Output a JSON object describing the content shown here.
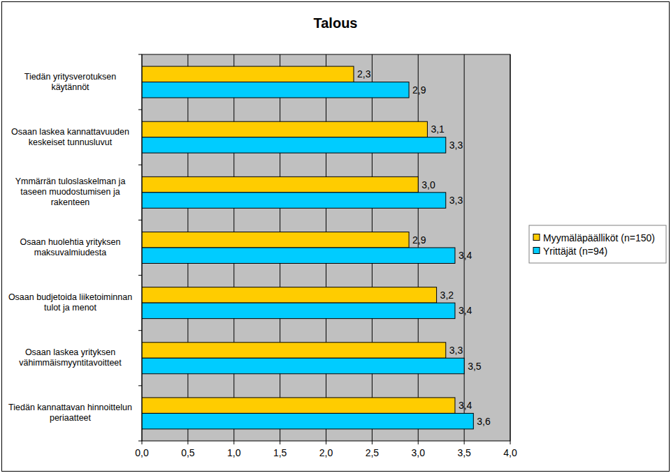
{
  "chart_data": {
    "type": "bar",
    "title": "Talous",
    "orientation": "horizontal",
    "categories": [
      "Tiedän yritysverotuksen käytännöt",
      "Osaan laskea kannattavuuden keskeiset tunnusluvut",
      "Ymmärrän tuloslaskelman ja taseen muodostumisen ja rakenteen",
      "Osaan huolehtia yrityksen maksuvalmiudesta",
      "Osaan budjetoida liiketoiminnan tulot ja menot",
      "Osaan laskea yrityksen vähimmäismyyntitavoitteet",
      "Tiedän kannattavan hinnoittelun periaatteet"
    ],
    "series": [
      {
        "name": "Myymäläpäälliköt (n=150)",
        "color": "#ffcc00",
        "values": [
          2.3,
          3.1,
          3.0,
          2.9,
          3.2,
          3.3,
          3.4
        ],
        "value_labels": [
          "2,3",
          "3,1",
          "3,0",
          "2,9",
          "3,2",
          "3,3",
          "3,4"
        ]
      },
      {
        "name": "Yrittäjät (n=94)",
        "color": "#00ccff",
        "values": [
          2.9,
          3.3,
          3.3,
          3.4,
          3.4,
          3.5,
          3.6
        ],
        "value_labels": [
          "2,9",
          "3,3",
          "3,3",
          "3,4",
          "3,4",
          "3,5",
          "3,6"
        ]
      }
    ],
    "xlim": [
      0,
      4
    ],
    "xticks": [
      {
        "value": 0,
        "label": "0,0"
      },
      {
        "value": 0.5,
        "label": "0,5"
      },
      {
        "value": 1,
        "label": "1,0"
      },
      {
        "value": 1.5,
        "label": "1,5"
      },
      {
        "value": 2,
        "label": "2,0"
      },
      {
        "value": 2.5,
        "label": "2,5"
      },
      {
        "value": 3,
        "label": "3,0"
      },
      {
        "value": 3.5,
        "label": "3,5"
      },
      {
        "value": 4,
        "label": "4,0"
      }
    ],
    "grid": true,
    "legend": "right",
    "data_labels": true
  }
}
